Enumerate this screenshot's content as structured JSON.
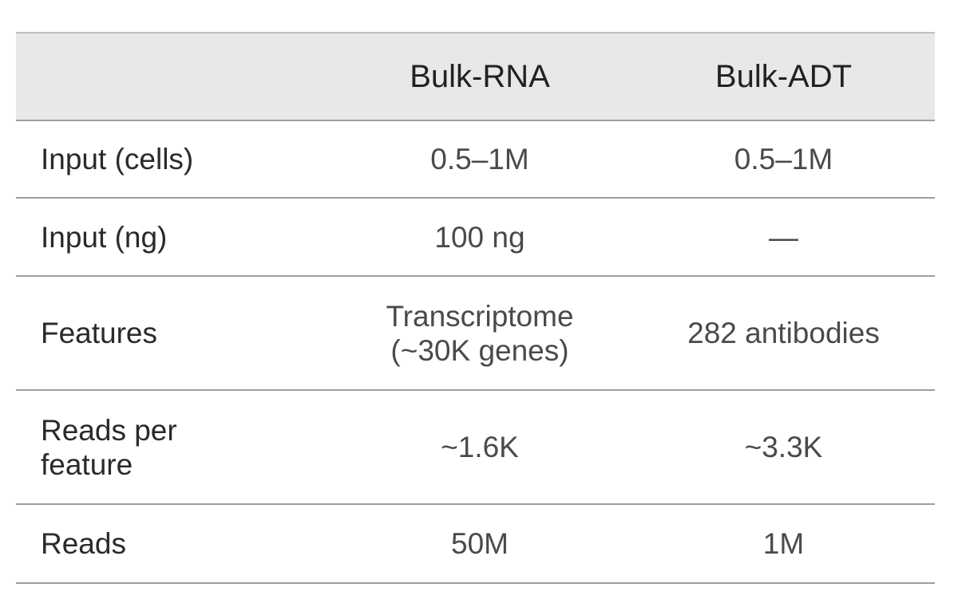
{
  "table": {
    "headers": [
      "",
      "Bulk-RNA",
      "Bulk-ADT"
    ],
    "rows": [
      {
        "label": "Input (cells)",
        "bulk_rna": "0.5–1M",
        "bulk_adt": "0.5–1M"
      },
      {
        "label": "Input (ng)",
        "bulk_rna": "100 ng",
        "bulk_adt": "—"
      },
      {
        "label": "Features",
        "bulk_rna": "Transcriptome (~30K genes)",
        "bulk_adt": "282 antibodies"
      },
      {
        "label": "Reads per feature",
        "bulk_rna": "~1.6K",
        "bulk_adt": "~3.3K"
      },
      {
        "label": "Reads",
        "bulk_rna": "50M",
        "bulk_adt": "1M"
      }
    ]
  }
}
